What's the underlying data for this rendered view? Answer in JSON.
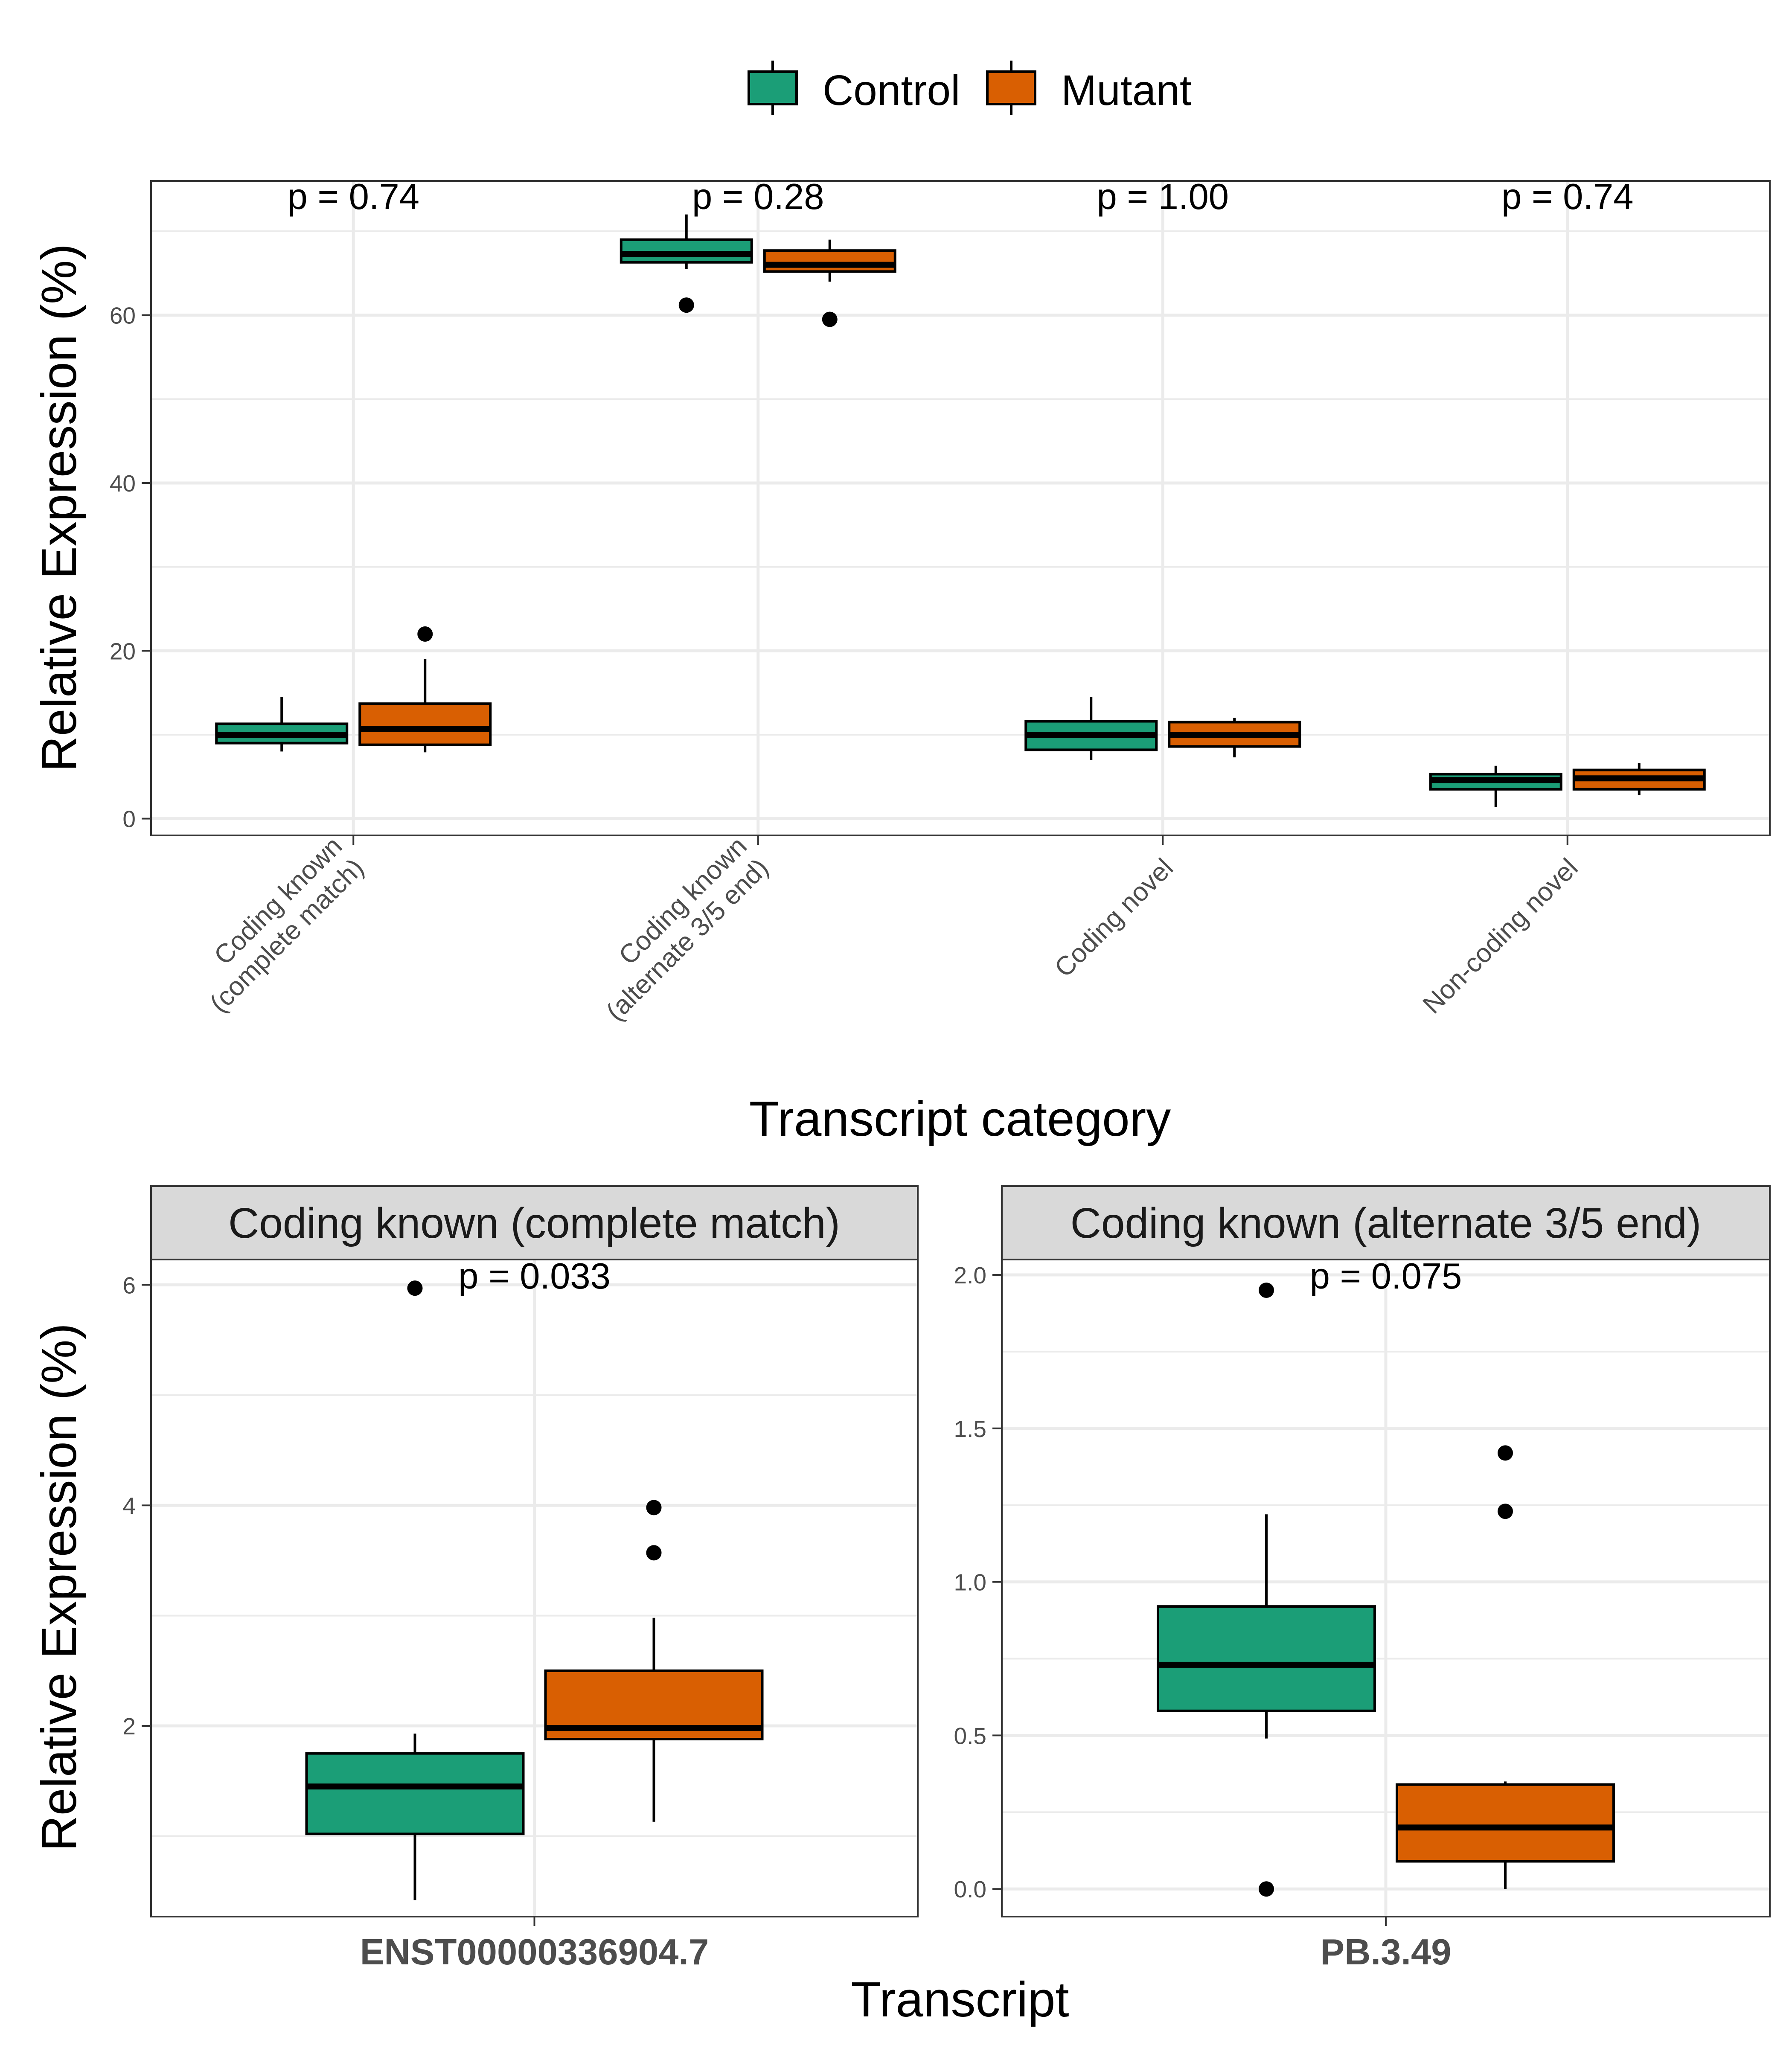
{
  "legend": {
    "items": [
      {
        "label": "Control",
        "color": "#1b9e77"
      },
      {
        "label": "Mutant",
        "color": "#d95f02"
      }
    ]
  },
  "colors": {
    "control": "#1b9e77",
    "mutant": "#d95f02",
    "grid": "#ebebeb",
    "strip_bg": "#d9d9d9"
  },
  "chart_data": [
    {
      "type": "box",
      "title": "",
      "xlabel": "Transcript category",
      "ylabel": "Relative Expression (%)",
      "ylim": [
        -2,
        76
      ],
      "yticks": [
        0,
        20,
        40,
        60
      ],
      "yticks_labels": [
        "0",
        "20",
        "40",
        "60"
      ],
      "categories": [
        "Coding known\n(complete match)",
        "Coding known\n(alternate 3/5 end)",
        "Coding novel",
        "Non-coding novel"
      ],
      "annotations": [
        "p = 0.74",
        "p = 0.28",
        "p = 1.00",
        "p = 0.74"
      ],
      "series": [
        {
          "name": "Control",
          "boxes": [
            {
              "min": 8,
              "q1": 9,
              "median": 10,
              "q3": 11.3,
              "max": 14.5,
              "outliers": []
            },
            {
              "min": 65.5,
              "q1": 66.3,
              "median": 67.3,
              "q3": 69,
              "max": 72,
              "outliers": [
                61.2
              ]
            },
            {
              "min": 7,
              "q1": 8.2,
              "median": 10,
              "q3": 11.6,
              "max": 14.5,
              "outliers": []
            },
            {
              "min": 1.4,
              "q1": 3.5,
              "median": 4.6,
              "q3": 5.3,
              "max": 6.3,
              "outliers": []
            }
          ]
        },
        {
          "name": "Mutant",
          "boxes": [
            {
              "min": 7.9,
              "q1": 8.8,
              "median": 10.7,
              "q3": 13.7,
              "max": 19,
              "outliers": [
                22
              ]
            },
            {
              "min": 64,
              "q1": 65.2,
              "median": 66,
              "q3": 67.7,
              "max": 69,
              "outliers": [
                59.5
              ]
            },
            {
              "min": 7.3,
              "q1": 8.6,
              "median": 10,
              "q3": 11.5,
              "max": 12,
              "outliers": []
            },
            {
              "min": 2.8,
              "q1": 3.5,
              "median": 4.8,
              "q3": 5.8,
              "max": 6.6,
              "outliers": []
            }
          ]
        }
      ]
    },
    {
      "type": "box",
      "facet": "Coding known (complete match)",
      "xlabel": "Transcript",
      "ylabel": "Relative Expression (%)",
      "ylim": [
        0.27,
        6.23
      ],
      "yticks": [
        2,
        4,
        6
      ],
      "yticks_labels": [
        "2",
        "4",
        "6"
      ],
      "categories": [
        "ENST00000336904.7"
      ],
      "annotations": [
        "p = 0.033"
      ],
      "series": [
        {
          "name": "Control",
          "boxes": [
            {
              "min": 0.42,
              "q1": 1.02,
              "median": 1.45,
              "q3": 1.75,
              "max": 1.93,
              "outliers": [
                5.97
              ]
            }
          ]
        },
        {
          "name": "Mutant",
          "boxes": [
            {
              "min": 1.13,
              "q1": 1.88,
              "median": 1.98,
              "q3": 2.5,
              "max": 2.98,
              "outliers": [
                3.98,
                3.57
              ]
            }
          ]
        }
      ]
    },
    {
      "type": "box",
      "facet": "Coding known (alternate 3/5 end)",
      "xlabel": "Transcript",
      "ylabel": "",
      "ylim": [
        -0.09,
        2.05
      ],
      "yticks": [
        0.0,
        0.5,
        1.0,
        1.5,
        2.0
      ],
      "yticks_labels": [
        "0.0",
        "0.5",
        "1.0",
        "1.5",
        "2.0"
      ],
      "categories": [
        "PB.3.49"
      ],
      "annotations": [
        "p = 0.075"
      ],
      "series": [
        {
          "name": "Control",
          "boxes": [
            {
              "min": 0.49,
              "q1": 0.58,
              "median": 0.73,
              "q3": 0.92,
              "max": 1.22,
              "outliers": [
                1.95,
                0.0
              ]
            }
          ]
        },
        {
          "name": "Mutant",
          "boxes": [
            {
              "min": 0.0,
              "q1": 0.09,
              "median": 0.2,
              "q3": 0.34,
              "max": 0.35,
              "outliers": [
                1.42,
                1.23
              ]
            }
          ]
        }
      ]
    }
  ],
  "axes": {
    "top_x_title": "Transcript category",
    "top_y_title": "Relative Expression (%)",
    "bottom_x_title": "Transcript",
    "bottom_y_title": "Relative Expression (%)"
  }
}
